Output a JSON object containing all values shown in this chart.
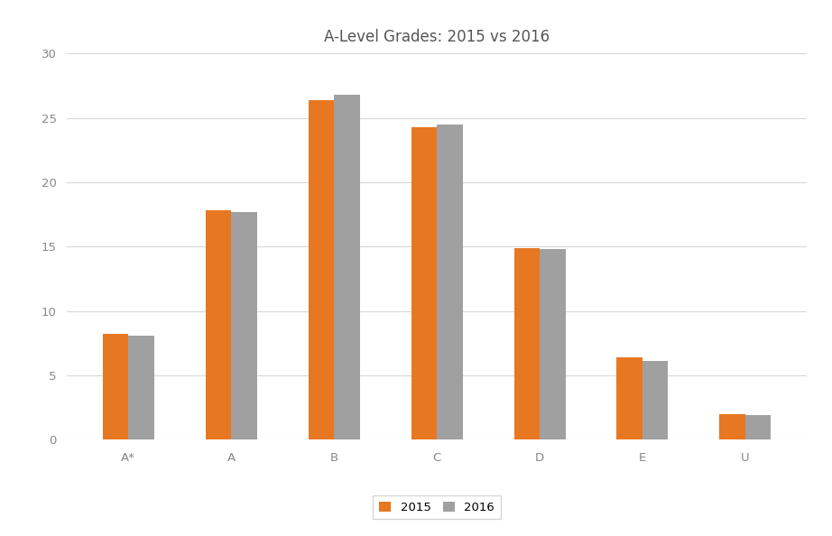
{
  "title": "A-Level Grades: 2015 vs 2016",
  "categories": [
    "A*",
    "A",
    "B",
    "C",
    "D",
    "E",
    "U"
  ],
  "values_2015": [
    8.2,
    17.8,
    26.4,
    24.3,
    14.9,
    6.4,
    2.0
  ],
  "values_2016": [
    8.1,
    17.7,
    26.8,
    24.5,
    14.8,
    6.1,
    1.9
  ],
  "color_2015": "#E87722",
  "color_2016": "#A0A0A0",
  "legend_labels": [
    "2015",
    "2016"
  ],
  "ylim": [
    0,
    30
  ],
  "yticks": [
    0,
    5,
    10,
    15,
    20,
    25,
    30
  ],
  "background_color": "#FFFFFF",
  "grid_color": "#D8D8D8",
  "title_fontsize": 12,
  "tick_fontsize": 9.5,
  "legend_fontsize": 9.5,
  "bar_width": 0.25
}
